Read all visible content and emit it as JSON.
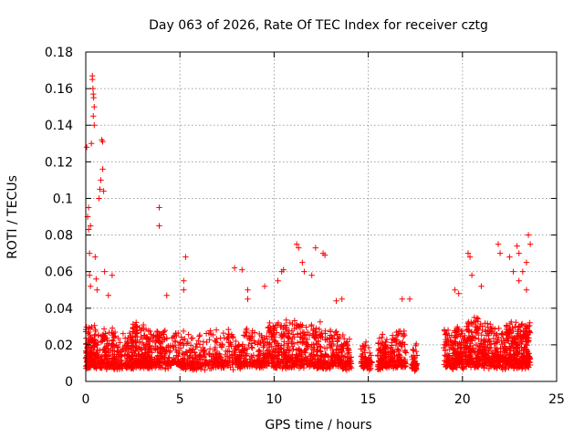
{
  "chart_data": {
    "type": "scatter",
    "title": "Day 063 of 2026, Rate Of TEC Index for receiver cztg",
    "xlabel": "GPS time / hours",
    "ylabel": "ROTI / TECUs",
    "xlim": [
      0,
      25
    ],
    "ylim": [
      0,
      0.18
    ],
    "xticks": [
      0,
      5,
      10,
      15,
      20,
      25
    ],
    "xtick_labels": [
      "0",
      "5",
      "10",
      "15",
      "20",
      "25"
    ],
    "yticks": [
      0,
      0.02,
      0.04,
      0.06,
      0.08,
      0.1,
      0.12,
      0.14,
      0.16,
      0.18
    ],
    "ytick_labels": [
      "0",
      "0.02",
      "0.04",
      "0.06",
      "0.08",
      "0.1",
      "0.12",
      "0.14",
      "0.16",
      "0.18"
    ],
    "grid": true,
    "marker": "plus",
    "color": "#ff0000",
    "series": [
      {
        "name": "ROTI",
        "points": [
          [
            0.05,
            0.128
          ],
          [
            0.1,
            0.09
          ],
          [
            0.15,
            0.083
          ],
          [
            0.2,
            0.07
          ],
          [
            0.2,
            0.058
          ],
          [
            0.25,
            0.052
          ],
          [
            0.3,
            0.13
          ],
          [
            0.35,
            0.167
          ],
          [
            0.35,
            0.165
          ],
          [
            0.38,
            0.16
          ],
          [
            0.4,
            0.157
          ],
          [
            0.42,
            0.155
          ],
          [
            0.45,
            0.15
          ],
          [
            0.4,
            0.145
          ],
          [
            0.45,
            0.14
          ],
          [
            0.5,
            0.068
          ],
          [
            0.55,
            0.056
          ],
          [
            0.6,
            0.05
          ],
          [
            0.7,
            0.1
          ],
          [
            0.75,
            0.105
          ],
          [
            0.8,
            0.11
          ],
          [
            0.85,
            0.132
          ],
          [
            0.9,
            0.131
          ],
          [
            0.9,
            0.116
          ],
          [
            0.95,
            0.104
          ],
          [
            1.0,
            0.06
          ],
          [
            1.2,
            0.047
          ],
          [
            1.4,
            0.058
          ],
          [
            0.15,
            0.095
          ],
          [
            0.25,
            0.085
          ],
          [
            3.9,
            0.095
          ],
          [
            3.9,
            0.085
          ],
          [
            4.3,
            0.047
          ],
          [
            5.2,
            0.055
          ],
          [
            5.3,
            0.068
          ],
          [
            5.2,
            0.05
          ],
          [
            7.9,
            0.062
          ],
          [
            8.3,
            0.061
          ],
          [
            8.6,
            0.05
          ],
          [
            8.6,
            0.045
          ],
          [
            9.5,
            0.052
          ],
          [
            10.2,
            0.055
          ],
          [
            10.4,
            0.06
          ],
          [
            10.5,
            0.061
          ],
          [
            11.2,
            0.075
          ],
          [
            11.3,
            0.073
          ],
          [
            11.5,
            0.065
          ],
          [
            11.6,
            0.06
          ],
          [
            12.0,
            0.058
          ],
          [
            12.2,
            0.073
          ],
          [
            12.6,
            0.07
          ],
          [
            12.7,
            0.069
          ],
          [
            13.3,
            0.044
          ],
          [
            13.6,
            0.045
          ],
          [
            16.8,
            0.045
          ],
          [
            17.2,
            0.045
          ],
          [
            19.6,
            0.05
          ],
          [
            19.8,
            0.048
          ],
          [
            20.3,
            0.07
          ],
          [
            20.4,
            0.068
          ],
          [
            20.5,
            0.058
          ],
          [
            21.0,
            0.052
          ],
          [
            21.9,
            0.075
          ],
          [
            22.0,
            0.07
          ],
          [
            22.5,
            0.068
          ],
          [
            22.9,
            0.074
          ],
          [
            23.0,
            0.07
          ],
          [
            23.2,
            0.06
          ],
          [
            23.4,
            0.065
          ],
          [
            23.5,
            0.08
          ],
          [
            23.6,
            0.075
          ],
          [
            23.4,
            0.05
          ],
          [
            23.0,
            0.055
          ],
          [
            22.7,
            0.06
          ]
        ]
      }
    ]
  }
}
